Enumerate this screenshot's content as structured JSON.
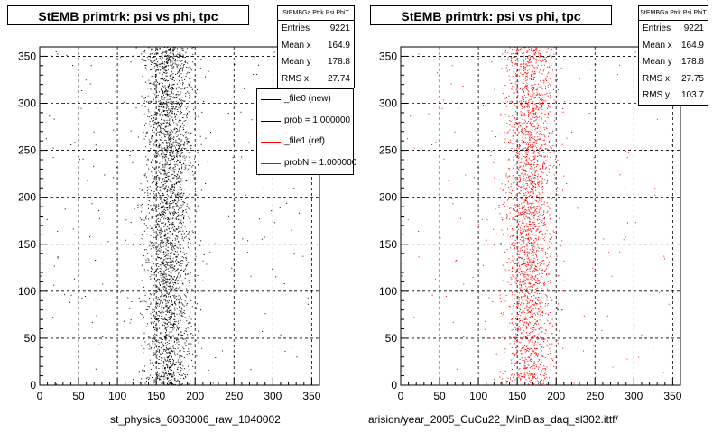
{
  "panels": [
    {
      "title": "StEMB primtrk: psi vs phi, tpc",
      "file_label": "st_physics_6083006_raw_1040002",
      "color": "#000000",
      "stats": {
        "header": "StEMBGa Ptrk Psi PhiT",
        "rows": [
          {
            "label": "Entries",
            "value": "9221"
          },
          {
            "label": "Mean x",
            "value": "164.9"
          },
          {
            "label": "Mean y",
            "value": "178.8"
          },
          {
            "label": "RMS x",
            "value": "27.74"
          }
        ]
      }
    },
    {
      "title": "StEMB primtrk: psi vs phi, tpc",
      "file_label": "arision/year_2005_CuCu22_MinBias_daq_sl302.ittf/",
      "color": "#ff0000",
      "stats": {
        "header": "StEMBGa Ptrk Psi PhiT",
        "rows": [
          {
            "label": "Entries",
            "value": "9221"
          },
          {
            "label": "Mean x",
            "value": "164.9"
          },
          {
            "label": "Mean y",
            "value": "178.8"
          },
          {
            "label": "RMS x",
            "value": "27.75"
          },
          {
            "label": "RMS y",
            "value": "103.7"
          }
        ]
      }
    }
  ],
  "legend": {
    "entries": [
      {
        "label": "_file0 (new)",
        "color": "#000000"
      },
      {
        "label": "prob = 1.000000",
        "color": "#000000"
      },
      {
        "label": "_file1 (ref)",
        "color": "#ff0000"
      },
      {
        "label": "probN = 1.000000",
        "color": "#ff0000"
      }
    ]
  },
  "chart_data": [
    {
      "type": "scatter",
      "title": "StEMB primtrk: psi vs phi, tpc",
      "xlabel": "st_physics_6083006_raw_1040002",
      "ylabel": "",
      "xlim": [
        0,
        360
      ],
      "ylim": [
        0,
        360
      ],
      "xticks": [
        0,
        50,
        100,
        150,
        200,
        250,
        300,
        350
      ],
      "yticks": [
        0,
        50,
        100,
        150,
        200,
        250,
        300,
        350
      ],
      "grid": true,
      "series": [
        {
          "name": "_file0 (new)",
          "entries": 9221,
          "mean_x": 164.9,
          "mean_y": 178.8,
          "rms_x": 27.74
        }
      ]
    },
    {
      "type": "scatter",
      "title": "StEMB primtrk: psi vs phi, tpc",
      "xlabel": "arision/year_2005_CuCu22_MinBias_daq_sl302.ittf/",
      "ylabel": "",
      "xlim": [
        0,
        360
      ],
      "ylim": [
        0,
        360
      ],
      "xticks": [
        0,
        50,
        100,
        150,
        200,
        250,
        300,
        350
      ],
      "yticks": [
        0,
        50,
        100,
        150,
        200,
        250,
        300,
        350
      ],
      "grid": true,
      "series": [
        {
          "name": "_file1 (ref)",
          "entries": 9221,
          "mean_x": 164.9,
          "mean_y": 178.8,
          "rms_x": 27.75,
          "rms_y": 103.7
        }
      ]
    }
  ]
}
